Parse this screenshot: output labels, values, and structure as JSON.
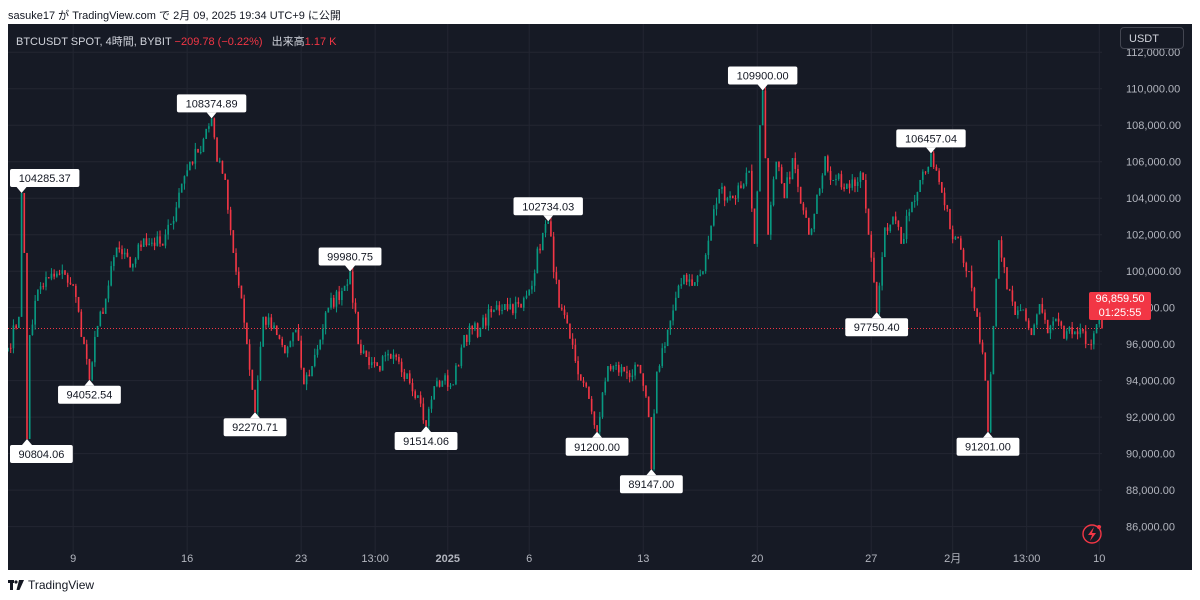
{
  "header": {
    "publish_line": "sasuke17 が TradingView.com で 2月 09, 2025 19:34 UTC+9 に公開"
  },
  "legend": {
    "symbol": "BTCUSDT SPOT, 4時間, BYBIT",
    "change": "−209.78 (−0.22%)",
    "volume_label": "出来高",
    "volume": "1.17 K"
  },
  "currency": "USDT",
  "footer": {
    "brand": "TradingView"
  },
  "last_price": {
    "price": "96,859.50",
    "countdown": "01:25:55"
  },
  "colors": {
    "up": "#089981",
    "down": "#f23645",
    "background": "#161a25",
    "grid": "#232632",
    "axis_text": "#b2b5be"
  },
  "chart_data": {
    "type": "candlestick",
    "title": "",
    "xlabel": "",
    "ylabel": "",
    "ylim": [
      84500,
      113000
    ],
    "y_ticks": [
      86000,
      88000,
      90000,
      92000,
      94000,
      96000,
      98000,
      100000,
      102000,
      104000,
      106000,
      108000,
      110000,
      112000
    ],
    "y_tick_labels": [
      "86,000.00",
      "88,000.00",
      "90,000.00",
      "92,000.00",
      "94,000.00",
      "96,000.00",
      "98,000.00",
      "100,000.00",
      "102,000.00",
      "104,000.00",
      "106,000.00",
      "108,000.00",
      "110,000.00",
      "112,000.00"
    ],
    "x_range": [
      "2024-12-05T00:00",
      "2025-02-10T04:00"
    ],
    "x_ticks": [
      {
        "label": "9",
        "date": "2024-12-09T00:00"
      },
      {
        "label": "16",
        "date": "2024-12-16T00:00"
      },
      {
        "label": "23",
        "date": "2024-12-23T00:00"
      },
      {
        "label": "13:00",
        "date": "2024-12-27T13:00"
      },
      {
        "label": "2025",
        "date": "2025-01-01T00:00",
        "bold": true
      },
      {
        "label": "6",
        "date": "2025-01-06T00:00"
      },
      {
        "label": "13",
        "date": "2025-01-13T00:00"
      },
      {
        "label": "20",
        "date": "2025-01-20T00:00"
      },
      {
        "label": "27",
        "date": "2025-01-27T00:00"
      },
      {
        "label": "2月",
        "date": "2025-02-01T00:00"
      },
      {
        "label": "13:00",
        "date": "2025-02-05T13:00"
      },
      {
        "label": "10",
        "date": "2025-02-10T00:00"
      }
    ],
    "last_price": 96859.5,
    "path": [
      [
        "2024-12-05T00:00",
        95800
      ],
      [
        "2024-12-05T16:00",
        97500
      ],
      [
        "2024-12-05T20:00",
        104285.37
      ],
      [
        "2024-12-06T00:00",
        101000
      ],
      [
        "2024-12-06T04:00",
        90804.06
      ],
      [
        "2024-12-06T08:00",
        96500
      ],
      [
        "2024-12-06T20:00",
        99000
      ],
      [
        "2024-12-07T12:00",
        99600
      ],
      [
        "2024-12-08T12:00",
        99800
      ],
      [
        "2024-12-09T00:00",
        99200
      ],
      [
        "2024-12-09T16:00",
        96000
      ],
      [
        "2024-12-10T00:00",
        94052.54
      ],
      [
        "2024-12-10T12:00",
        97000
      ],
      [
        "2024-12-11T00:00",
        98500
      ],
      [
        "2024-12-11T16:00",
        101300
      ],
      [
        "2024-12-12T12:00",
        100200
      ],
      [
        "2024-12-13T08:00",
        101800
      ],
      [
        "2024-12-14T12:00",
        101400
      ],
      [
        "2024-12-15T00:00",
        102600
      ],
      [
        "2024-12-15T16:00",
        104800
      ],
      [
        "2024-12-16T04:00",
        106000
      ],
      [
        "2024-12-16T16:00",
        106500
      ],
      [
        "2024-12-17T04:00",
        107800
      ],
      [
        "2024-12-17T12:00",
        108374.89
      ],
      [
        "2024-12-17T20:00",
        106000
      ],
      [
        "2024-12-18T08:00",
        105000
      ],
      [
        "2024-12-18T20:00",
        101000
      ],
      [
        "2024-12-19T08:00",
        98500
      ],
      [
        "2024-12-19T16:00",
        96000
      ],
      [
        "2024-12-20T00:00",
        93500
      ],
      [
        "2024-12-20T04:00",
        92270.71
      ],
      [
        "2024-12-20T16:00",
        97500
      ],
      [
        "2024-12-21T12:00",
        96500
      ],
      [
        "2024-12-22T00:00",
        95500
      ],
      [
        "2024-12-22T16:00",
        96800
      ],
      [
        "2024-12-23T04:00",
        93800
      ],
      [
        "2024-12-23T16:00",
        94800
      ],
      [
        "2024-12-24T16:00",
        98000
      ],
      [
        "2024-12-25T16:00",
        99200
      ],
      [
        "2024-12-26T00:00",
        99980.75
      ],
      [
        "2024-12-26T12:00",
        96000
      ],
      [
        "2024-12-27T00:00",
        95300
      ],
      [
        "2024-12-27T16:00",
        94800
      ],
      [
        "2024-12-28T12:00",
        95200
      ],
      [
        "2024-12-29T12:00",
        94400
      ],
      [
        "2024-12-30T04:00",
        93200
      ],
      [
        "2024-12-30T16:00",
        91514.06
      ],
      [
        "2024-12-31T04:00",
        93700
      ],
      [
        "2024-12-31T16:00",
        94000
      ],
      [
        "2025-01-01T08:00",
        93800
      ],
      [
        "2025-01-02T00:00",
        96500
      ],
      [
        "2025-01-03T00:00",
        96900
      ],
      [
        "2025-01-03T20:00",
        97900
      ],
      [
        "2025-01-04T12:00",
        98200
      ],
      [
        "2025-01-05T12:00",
        98000
      ],
      [
        "2025-01-06T00:00",
        99000
      ],
      [
        "2025-01-06T20:00",
        102100
      ],
      [
        "2025-01-07T04:00",
        102734.03
      ],
      [
        "2025-01-07T20:00",
        98000
      ],
      [
        "2025-01-08T12:00",
        96300
      ],
      [
        "2025-01-09T04:00",
        94000
      ],
      [
        "2025-01-09T16:00",
        93000
      ],
      [
        "2025-01-10T04:00",
        91200
      ],
      [
        "2025-01-10T20:00",
        94800
      ],
      [
        "2025-01-11T20:00",
        94500
      ],
      [
        "2025-01-12T20:00",
        94400
      ],
      [
        "2025-01-13T08:00",
        92000
      ],
      [
        "2025-01-13T12:00",
        89147
      ],
      [
        "2025-01-13T20:00",
        94500
      ],
      [
        "2025-01-14T12:00",
        96800
      ],
      [
        "2025-01-15T12:00",
        99800
      ],
      [
        "2025-01-16T04:00",
        99400
      ],
      [
        "2025-01-16T16:00",
        100000
      ],
      [
        "2025-01-17T04:00",
        102500
      ],
      [
        "2025-01-17T16:00",
        104500
      ],
      [
        "2025-01-18T12:00",
        104000
      ],
      [
        "2025-01-19T12:00",
        105500
      ],
      [
        "2025-01-19T20:00",
        101500
      ],
      [
        "2025-01-20T04:00",
        108000
      ],
      [
        "2025-01-20T08:00",
        109900
      ],
      [
        "2025-01-20T16:00",
        102000
      ],
      [
        "2025-01-21T04:00",
        106000
      ],
      [
        "2025-01-21T16:00",
        104000
      ],
      [
        "2025-01-22T04:00",
        106200
      ],
      [
        "2025-01-22T16:00",
        103700
      ],
      [
        "2025-01-23T04:00",
        102000
      ],
      [
        "2025-01-23T16:00",
        104200
      ],
      [
        "2025-01-24T04:00",
        106300
      ],
      [
        "2025-01-24T16:00",
        105000
      ],
      [
        "2025-01-25T12:00",
        104800
      ],
      [
        "2025-01-26T12:00",
        105000
      ],
      [
        "2025-01-26T20:00",
        102000
      ],
      [
        "2025-01-27T08:00",
        97750.4
      ],
      [
        "2025-01-27T20:00",
        102400
      ],
      [
        "2025-01-28T08:00",
        103000
      ],
      [
        "2025-01-28T20:00",
        101500
      ],
      [
        "2025-01-29T12:00",
        103800
      ],
      [
        "2025-01-30T00:00",
        105000
      ],
      [
        "2025-01-30T16:00",
        106457.04
      ],
      [
        "2025-01-31T08:00",
        104300
      ],
      [
        "2025-01-31T20:00",
        102300
      ],
      [
        "2025-02-01T08:00",
        101800
      ],
      [
        "2025-02-02T00:00",
        100000
      ],
      [
        "2025-02-02T12:00",
        97500
      ],
      [
        "2025-02-03T00:00",
        94000
      ],
      [
        "2025-02-03T04:00",
        91201
      ],
      [
        "2025-02-03T12:00",
        97000
      ],
      [
        "2025-02-03T20:00",
        101700
      ],
      [
        "2025-02-04T08:00",
        99000
      ],
      [
        "2025-02-04T20:00",
        97600
      ],
      [
        "2025-02-05T08:00",
        97900
      ],
      [
        "2025-02-05T20:00",
        96500
      ],
      [
        "2025-02-06T08:00",
        98200
      ],
      [
        "2025-02-06T20:00",
        96600
      ],
      [
        "2025-02-07T08:00",
        97400
      ],
      [
        "2025-02-07T20:00",
        96300
      ],
      [
        "2025-02-08T12:00",
        96700
      ],
      [
        "2025-02-09T08:00",
        96000
      ],
      [
        "2025-02-09T20:00",
        97100
      ],
      [
        "2025-02-10T04:00",
        96859.5
      ]
    ],
    "annotations": [
      {
        "text": "104285.37",
        "date": "2024-12-05T20:00",
        "value": 104285.37,
        "side": "top"
      },
      {
        "text": "90804.06",
        "date": "2024-12-06T04:00",
        "value": 90804.06,
        "side": "bottom"
      },
      {
        "text": "94052.54",
        "date": "2024-12-10T00:00",
        "value": 94052.54,
        "side": "bottom"
      },
      {
        "text": "108374.89",
        "date": "2024-12-17T12:00",
        "value": 108374.89,
        "side": "top"
      },
      {
        "text": "92270.71",
        "date": "2024-12-20T04:00",
        "value": 92270.71,
        "side": "bottom"
      },
      {
        "text": "99980.75",
        "date": "2024-12-26T00:00",
        "value": 99980.75,
        "side": "top"
      },
      {
        "text": "91514.06",
        "date": "2024-12-30T16:00",
        "value": 91514.06,
        "side": "bottom"
      },
      {
        "text": "102734.03",
        "date": "2025-01-07T04:00",
        "value": 102734.03,
        "side": "top"
      },
      {
        "text": "91200.00",
        "date": "2025-01-10T04:00",
        "value": 91200.0,
        "side": "bottom"
      },
      {
        "text": "89147.00",
        "date": "2025-01-13T12:00",
        "value": 89147.0,
        "side": "bottom"
      },
      {
        "text": "109900.00",
        "date": "2025-01-20T08:00",
        "value": 109900.0,
        "side": "top"
      },
      {
        "text": "97750.40",
        "date": "2025-01-27T08:00",
        "value": 97750.4,
        "side": "bottom"
      },
      {
        "text": "106457.04",
        "date": "2025-01-30T16:00",
        "value": 106457.04,
        "side": "top"
      },
      {
        "text": "91201.00",
        "date": "2025-02-03T04:00",
        "value": 91201.0,
        "side": "bottom"
      }
    ]
  }
}
